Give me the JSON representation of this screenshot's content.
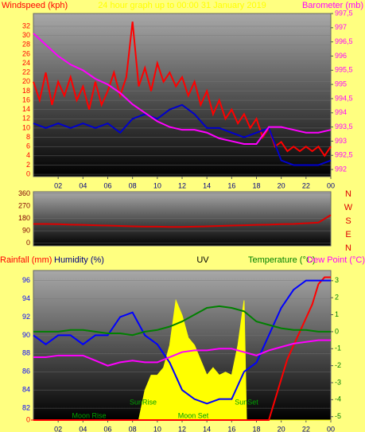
{
  "chart_data": [
    {
      "type": "line",
      "title": "24 hour graph up to 00:00 31 January 2019",
      "ylabel": "Windspeed (kph)",
      "y2label": "Barometer (mb)",
      "xlim": [
        0,
        24
      ],
      "xticks": [
        {
          "value": 2,
          "label": "02"
        },
        {
          "value": 4,
          "label": "04"
        },
        {
          "value": 6,
          "label": "06"
        },
        {
          "value": 8,
          "label": "08"
        },
        10,
        12,
        14,
        16,
        18,
        20,
        22,
        {
          "value": 24,
          "label": "00"
        }
      ],
      "ylim": [
        -0.5,
        34.75
      ],
      "yticks": [
        0,
        2,
        4,
        6,
        8,
        10,
        12,
        14,
        16,
        18,
        20,
        22,
        24,
        26,
        28,
        30,
        32
      ],
      "y2lim": [
        991.75,
        997.5
      ],
      "y2ticks": [
        992,
        {
          "value": 992.5,
          "label": "992,5"
        },
        993,
        {
          "value": 993.5,
          "label": "993,5"
        },
        994,
        {
          "value": 994.5,
          "label": "994,5"
        },
        995,
        {
          "value": 995.5,
          "label": "995,5"
        },
        996,
        {
          "value": 996.5,
          "label": "996,5"
        },
        997,
        {
          "value": 997.5,
          "label": "997,5"
        }
      ],
      "series": [
        {
          "color": "#ff0000",
          "x": [
            0,
            0.5,
            1,
            1.5,
            2,
            2.5,
            3,
            3.5,
            4,
            4.5,
            5,
            5.5,
            6,
            6.5,
            7,
            7.5,
            8,
            8.5,
            9,
            9.5,
            10,
            10.5,
            11,
            11.5,
            12,
            12.5,
            13,
            13.5,
            14,
            14.5,
            15,
            15.5,
            16,
            16.5,
            17,
            17.5,
            18,
            18.5,
            19,
            19.5,
            20,
            20.5,
            21,
            21.5,
            22,
            22.5,
            23,
            23.5,
            24
          ],
          "values": [
            20,
            16,
            22,
            15,
            20,
            17,
            21,
            16,
            19,
            14,
            20,
            15,
            18,
            22,
            17,
            21,
            33,
            19,
            23,
            18,
            24,
            20,
            22,
            19,
            21,
            17,
            20,
            15,
            18,
            13,
            16,
            12,
            14,
            11,
            13,
            10,
            12,
            8,
            10,
            6,
            7,
            5,
            6,
            5,
            6,
            5,
            6,
            4,
            6
          ]
        },
        {
          "color": "#0000cc",
          "x": [
            0,
            1,
            2,
            3,
            4,
            5,
            6,
            7,
            8,
            9,
            10,
            11,
            12,
            13,
            14,
            15,
            16,
            17,
            18,
            19,
            20,
            21,
            22,
            23,
            24
          ],
          "values": [
            11,
            10,
            11,
            10,
            11,
            10,
            11,
            9,
            12,
            13,
            12,
            14,
            15,
            13,
            10,
            10,
            9,
            8,
            9,
            10,
            3,
            2,
            2,
            2,
            3
          ]
        },
        {
          "color": "#ff00ff",
          "axis": "y2",
          "x": [
            0,
            1,
            2,
            3,
            4,
            5,
            6,
            7,
            8,
            9,
            10,
            11,
            12,
            13,
            14,
            15,
            16,
            17,
            18,
            19,
            20,
            21,
            22,
            23,
            24
          ],
          "values": [
            996.8,
            996.4,
            996.0,
            995.7,
            995.5,
            995.2,
            995.0,
            994.7,
            994.3,
            994.0,
            993.7,
            993.5,
            993.4,
            993.4,
            993.3,
            993.1,
            993.0,
            992.9,
            992.9,
            993.5,
            993.5,
            993.4,
            993.3,
            993.3,
            993.4
          ]
        }
      ]
    },
    {
      "type": "line",
      "xlim": [
        0,
        24
      ],
      "ylim": [
        -20,
        375
      ],
      "yticks": [
        0,
        90,
        180,
        270,
        360
      ],
      "direction_labels": [
        "N",
        "W",
        "S",
        "E",
        "N"
      ],
      "series": [
        {
          "color": "#dd0000",
          "x": [
            0,
            1,
            2,
            3,
            4,
            5,
            6,
            7,
            8,
            9,
            10,
            11,
            12,
            13,
            14,
            15,
            16,
            17,
            18,
            19,
            20,
            21,
            22,
            23,
            24
          ],
          "values": [
            140,
            140,
            138,
            135,
            133,
            130,
            128,
            125,
            122,
            120,
            120,
            118,
            118,
            120,
            122,
            125,
            128,
            130,
            133,
            135,
            138,
            140,
            145,
            150,
            205
          ]
        }
      ]
    },
    {
      "type": "line",
      "labels": [
        "Rainfall (mm)",
        "Humidity (%)",
        "UV",
        "Temperature (°C)",
        "Dew Point (°C)"
      ],
      "xlim": [
        0,
        24
      ],
      "xticks": [
        {
          "value": 2,
          "label": "02"
        },
        {
          "value": 4,
          "label": "04"
        },
        {
          "value": 6,
          "label": "06"
        },
        {
          "value": 8,
          "label": "08"
        },
        10,
        12,
        14,
        16,
        18,
        20,
        22,
        {
          "value": 24,
          "label": "00"
        }
      ],
      "ylim": [
        80.7,
        97.1
      ],
      "yticks": [
        82,
        84,
        86,
        88,
        90,
        92,
        94,
        96
      ],
      "y2lim": [
        -5.2,
        3.6
      ],
      "y2ticks": [
        -5,
        -4,
        -3,
        -2,
        -1,
        0,
        1,
        2,
        3
      ],
      "rainlim": [
        0,
        1.1
      ],
      "rainticks": [
        0
      ],
      "uvlim": [
        0,
        10
      ],
      "annotations": [
        "Moon Rise",
        "SunRise",
        "SunSet",
        "Moon Set"
      ],
      "series": [
        {
          "color": "#ffff00",
          "axis": "uv",
          "fill": true,
          "x": [
            0,
            8,
            8.5,
            9,
            9.5,
            10,
            10.5,
            11,
            11.5,
            12,
            12.5,
            13,
            13.5,
            14,
            14.5,
            15,
            15.5,
            16,
            16.5,
            17,
            17.2,
            24
          ],
          "values": [
            0,
            0,
            0,
            2,
            3,
            3,
            3.5,
            5,
            8,
            7,
            5.5,
            5,
            4,
            3,
            3.5,
            3,
            3.2,
            3,
            5,
            8,
            0,
            0
          ]
        },
        {
          "color": "#ff0000",
          "axis": "rain",
          "x": [
            0,
            19,
            19.5,
            20,
            20.5,
            21,
            21.5,
            22,
            22.5,
            23,
            23.5,
            24
          ],
          "values": [
            0,
            0,
            0.15,
            0.3,
            0.45,
            0.55,
            0.65,
            0.75,
            0.85,
            1.0,
            1.05,
            1.05
          ]
        },
        {
          "color": "#0000ff",
          "x": [
            0,
            1,
            2,
            3,
            4,
            5,
            6,
            7,
            8,
            9,
            10,
            11,
            12,
            13,
            14,
            15,
            16,
            17,
            18,
            19,
            20,
            21,
            22,
            23,
            24
          ],
          "values": [
            90,
            89,
            90,
            90,
            89,
            90,
            90,
            92,
            92.5,
            90,
            89,
            87,
            84,
            83,
            82.5,
            83,
            83,
            86,
            87,
            90,
            93,
            95,
            96,
            96,
            96
          ]
        },
        {
          "color": "#008000",
          "axis": "y2",
          "x": [
            0,
            1,
            2,
            3,
            4,
            5,
            6,
            7,
            8,
            9,
            10,
            11,
            12,
            13,
            14,
            15,
            16,
            17,
            18,
            19,
            20,
            21,
            22,
            23,
            24
          ],
          "values": [
            0,
            0,
            0,
            0.1,
            0.1,
            0,
            -0.1,
            -0.1,
            -0.2,
            0,
            0.1,
            0.3,
            0.6,
            1.0,
            1.4,
            1.5,
            1.4,
            1.2,
            0.6,
            0.4,
            0.2,
            0.1,
            0.1,
            0,
            0
          ]
        },
        {
          "color": "#ff00ff",
          "axis": "y2",
          "x": [
            0,
            1,
            2,
            3,
            4,
            5,
            6,
            7,
            8,
            9,
            10,
            11,
            12,
            13,
            14,
            15,
            16,
            17,
            18,
            19,
            20,
            21,
            22,
            23,
            24
          ],
          "values": [
            -1.5,
            -1.5,
            -1.4,
            -1.4,
            -1.4,
            -1.7,
            -2.0,
            -1.8,
            -1.7,
            -1.8,
            -1.8,
            -1.5,
            -1.2,
            -1.1,
            -1.1,
            -1.0,
            -1.0,
            -1.2,
            -1.4,
            -1.1,
            -0.9,
            -0.7,
            -0.6,
            -0.5,
            -0.5
          ]
        }
      ]
    }
  ]
}
